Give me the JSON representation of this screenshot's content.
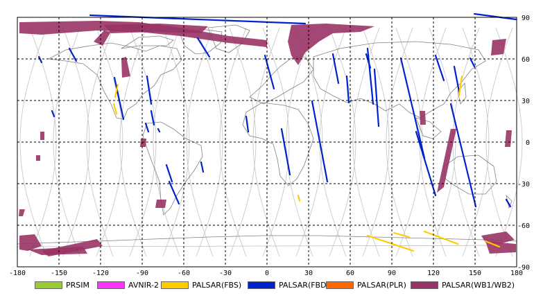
{
  "map": {
    "lon_ticks": [
      "-180",
      "-150",
      "-120",
      "-90",
      "-60",
      "-30",
      "0",
      "30",
      "60",
      "90",
      "120",
      "150",
      "180"
    ],
    "lat_ticks": [
      "90",
      "60",
      "30",
      "0",
      "-30",
      "-60",
      "-90"
    ]
  },
  "legend": [
    {
      "label": "PRSIM",
      "color": "#99cc33"
    },
    {
      "label": "AVNIR-2",
      "color": "#ff33ff"
    },
    {
      "label": "PALSAR(FBS)",
      "color": "#ffcc00"
    },
    {
      "label": "PALSAR(FBD)",
      "color": "#0022cc"
    },
    {
      "label": "PALSAR(PLR)",
      "color": "#ff6600"
    },
    {
      "label": "PALSAR(WB1/WB2)",
      "color": "#993366"
    }
  ],
  "colors": {
    "grid": "#000000",
    "orbit": "#c8c8c8",
    "coast": "#808080",
    "fbd": "#0022cc",
    "fbs": "#ffcc00",
    "wb": "#993366"
  }
}
